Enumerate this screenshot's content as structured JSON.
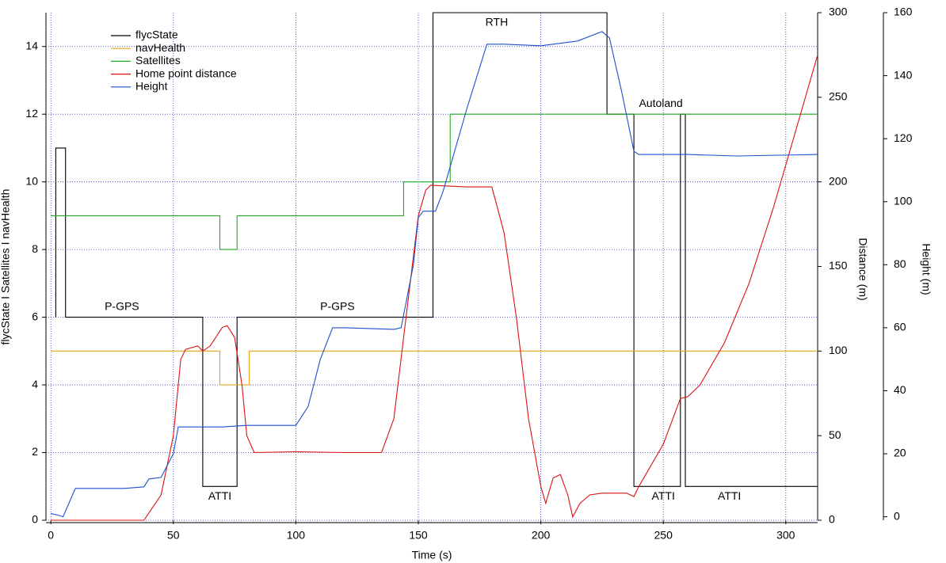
{
  "chart_data": {
    "type": "line",
    "xlabel": "Time (s)",
    "ylabel": "flycState I Satellites I navHealth",
    "y2label": "Distance (m)",
    "y3label": "Height (m)",
    "xlim": [
      -2,
      313
    ],
    "xticks": [
      0,
      50,
      100,
      150,
      200,
      250,
      300
    ],
    "ylim": [
      0,
      15
    ],
    "yticks": [
      0,
      2,
      4,
      6,
      8,
      10,
      12,
      14
    ],
    "y2lim": [
      0,
      300
    ],
    "y2ticks": [
      0,
      50,
      100,
      150,
      200,
      250,
      300
    ],
    "y3lim": [
      -1.1,
      160
    ],
    "y3ticks": [
      0,
      20,
      40,
      60,
      80,
      100,
      120,
      140,
      160
    ],
    "grid": true,
    "legend": "upper left",
    "series": [
      {
        "name": "flycState",
        "color": "#000000",
        "axis": "y",
        "x": [
          2,
          2,
          6,
          6,
          62,
          62,
          76,
          76,
          156,
          156,
          227,
          227,
          238,
          238,
          257,
          257,
          259,
          259,
          313
        ],
        "values": [
          6,
          11,
          11,
          6,
          6,
          1,
          1,
          6,
          6,
          15,
          15,
          12,
          12,
          1,
          1,
          12,
          12,
          1,
          1
        ]
      },
      {
        "name": "navHealth",
        "color": "#e8a317",
        "axis": "y",
        "x": [
          0,
          69,
          69,
          81,
          81,
          313
        ],
        "values": [
          5,
          5,
          4,
          4,
          5,
          5
        ]
      },
      {
        "name": "Satellites",
        "color": "#22aa22",
        "axis": "y",
        "x": [
          0,
          69,
          69,
          76,
          76,
          144,
          144,
          163,
          163,
          313
        ],
        "values": [
          9,
          9,
          8,
          8,
          9,
          9,
          10,
          10,
          12,
          12
        ]
      },
      {
        "name": "Home point distance",
        "color": "#dd1111",
        "axis": "y2",
        "x": [
          0,
          38,
          45,
          50,
          53,
          55,
          60,
          62,
          65,
          70,
          72,
          75,
          78,
          80,
          83,
          100,
          120,
          135,
          140,
          145,
          150,
          153,
          155,
          170,
          180,
          185,
          190,
          195,
          200,
          202,
          205,
          208,
          211,
          213,
          216,
          220,
          225,
          235,
          238,
          240,
          250,
          257,
          260,
          265,
          275,
          285,
          295,
          305,
          313
        ],
        "values": [
          0,
          0,
          15,
          50,
          95,
          101,
          103,
          100,
          103,
          114,
          115,
          108,
          80,
          50,
          40,
          40.5,
          40,
          40,
          60,
          120,
          180,
          195,
          198,
          197,
          197,
          170,
          120,
          60,
          20,
          10,
          25,
          27,
          15,
          2,
          10,
          15,
          16,
          16,
          14,
          20,
          45,
          72,
          73,
          80,
          105,
          140,
          185,
          235,
          275
        ]
      },
      {
        "name": "Height",
        "color": "#1f4fd0",
        "axis": "y3",
        "x": [
          0,
          3,
          5,
          10,
          15,
          30,
          38,
          40,
          45,
          50,
          52,
          55,
          70,
          80,
          100,
          105,
          110,
          115,
          120,
          140,
          143,
          148,
          150,
          152,
          157,
          160,
          170,
          178,
          185,
          200,
          205,
          215,
          225,
          228,
          233,
          238,
          240,
          260,
          280,
          313
        ],
        "values": [
          1,
          0.5,
          0,
          9,
          9,
          9,
          9.5,
          12,
          12.5,
          20,
          28.5,
          28.5,
          28.5,
          29,
          29,
          35,
          50,
          60,
          60,
          59.5,
          60,
          80,
          95,
          97,
          97,
          103,
          130,
          150,
          150,
          149.5,
          150,
          151,
          154,
          152,
          135,
          116,
          115,
          115,
          114.5,
          115
        ]
      }
    ],
    "annotations": [
      {
        "text": "P-GPS",
        "x": 29,
        "y": 6.3
      },
      {
        "text": "ATTI",
        "x": 69,
        "y": 0.7
      },
      {
        "text": "P-GPS",
        "x": 117,
        "y": 6.3
      },
      {
        "text": "RTH",
        "x": 182,
        "y": 14.7
      },
      {
        "text": "Autoland",
        "x": 249,
        "y": 12.3
      },
      {
        "text": "ATTI",
        "x": 250,
        "y": 0.7
      },
      {
        "text": "ATTI",
        "x": 277,
        "y": 0.7
      }
    ]
  }
}
